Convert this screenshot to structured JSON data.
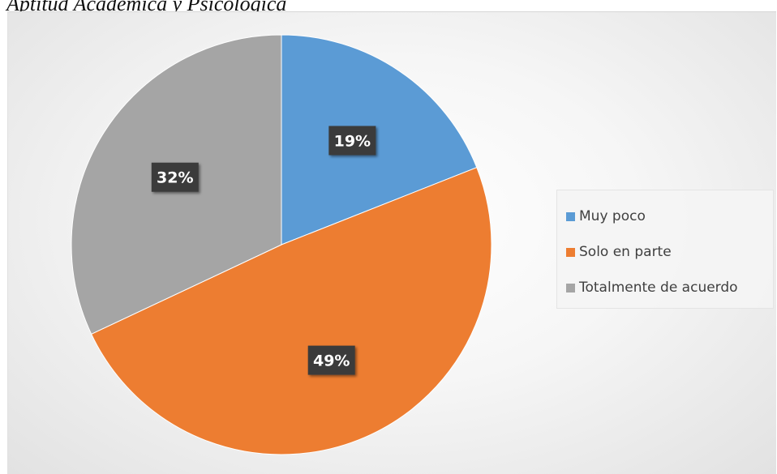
{
  "page": {
    "title": "Aptitud Académica y Psicológica"
  },
  "chart_data": {
    "type": "pie",
    "categories": [
      "Muy poco",
      "Solo en parte",
      "Totalmente de acuerdo"
    ],
    "values": [
      19,
      49,
      32
    ],
    "labels": [
      "19%",
      "49%",
      "32%"
    ],
    "colors": [
      "#5B9BD5",
      "#ED7D31",
      "#A5A5A5"
    ],
    "legend": "right",
    "start_angle": "12 o'clock, clockwise"
  }
}
